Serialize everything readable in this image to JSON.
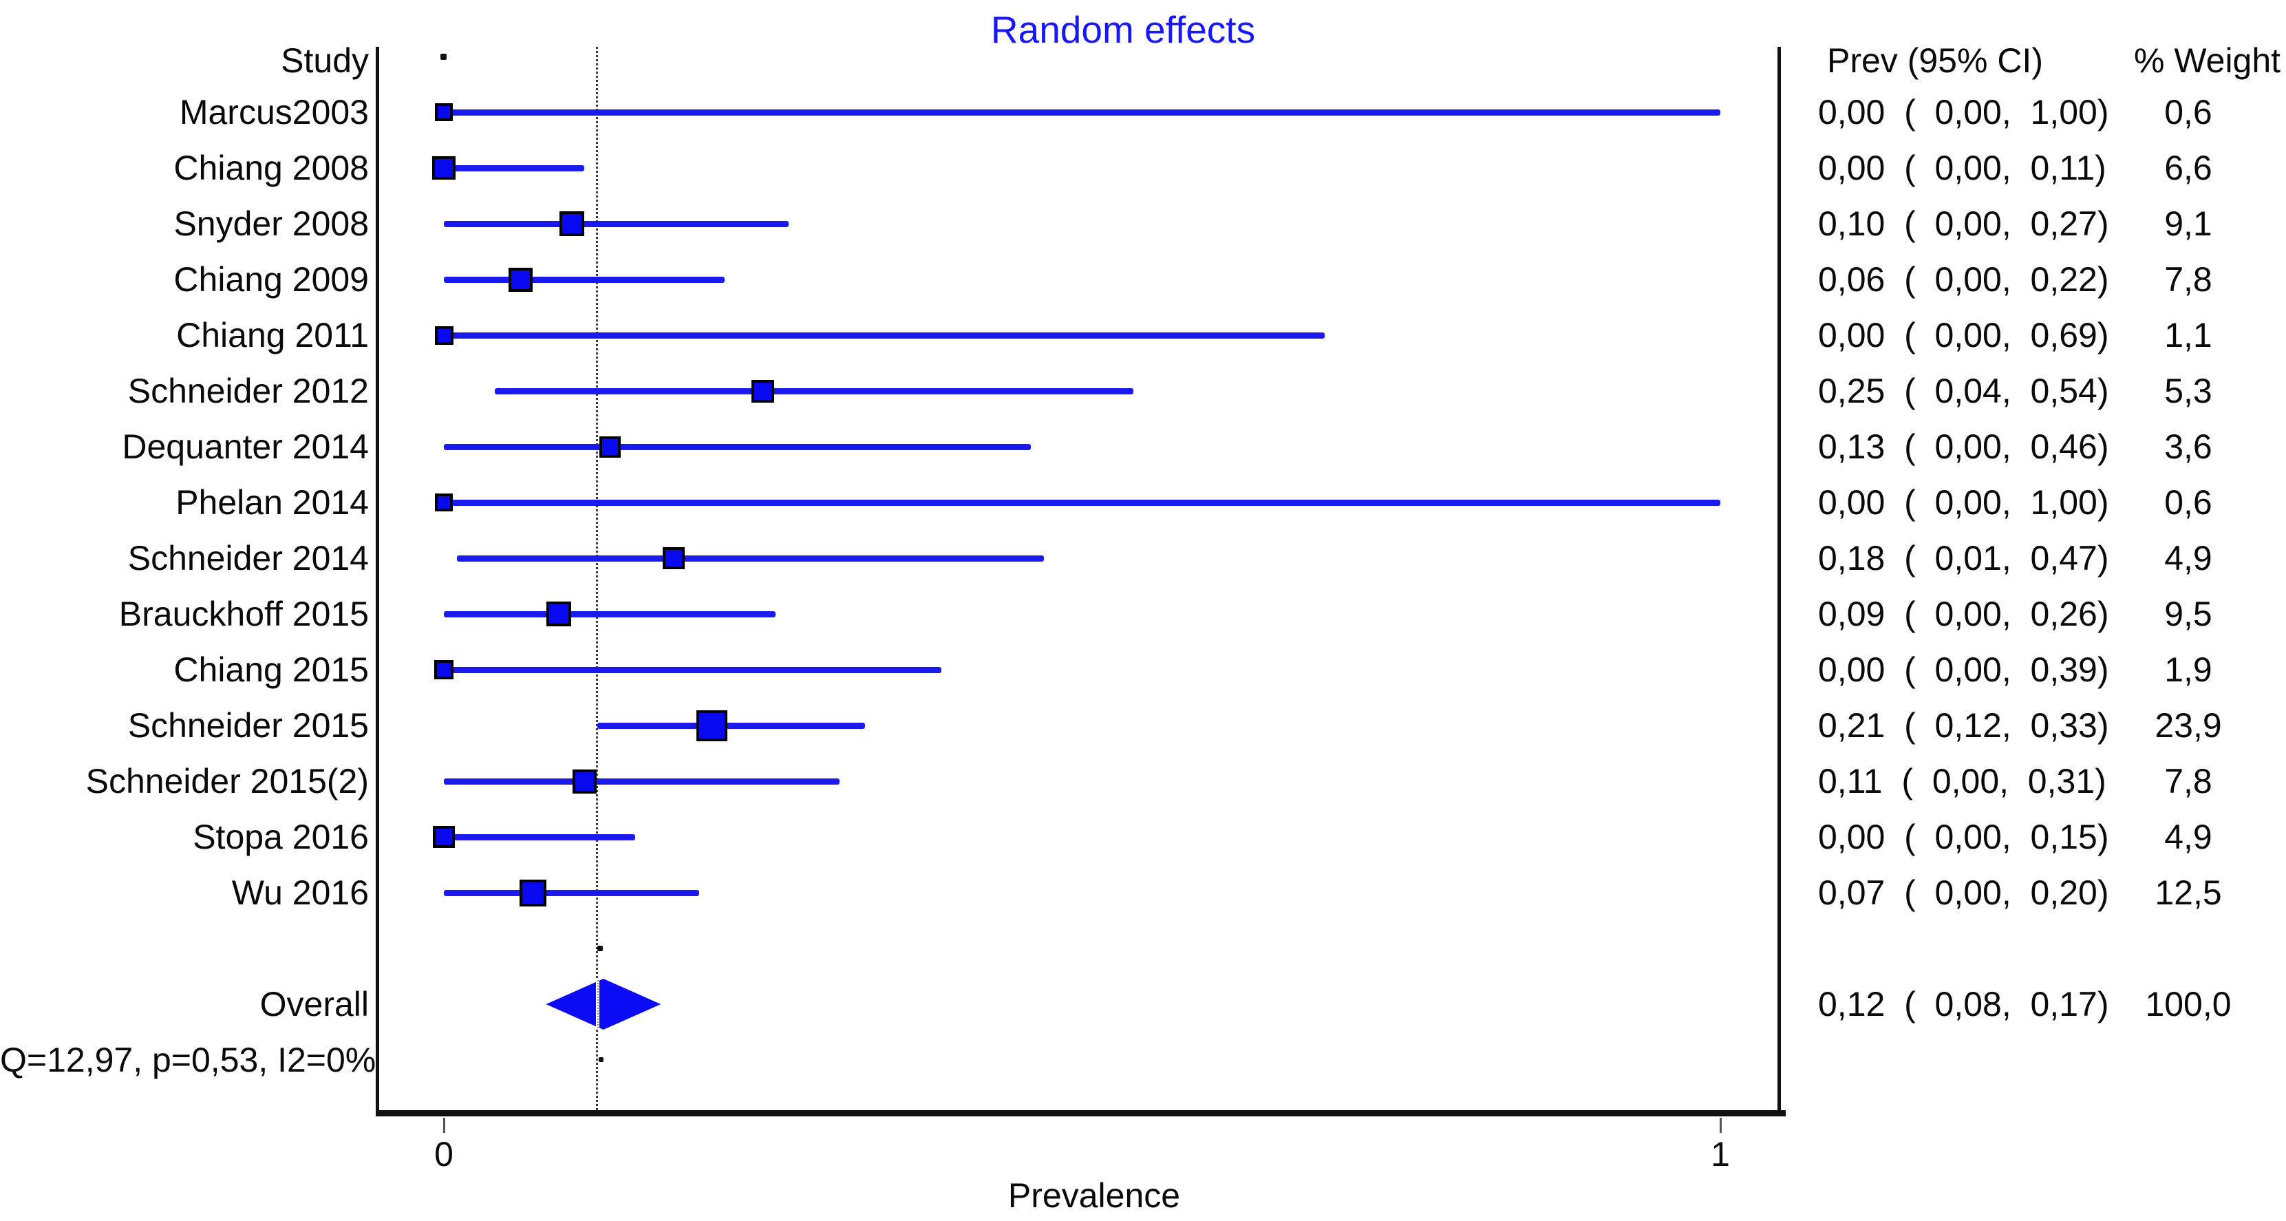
{
  "colors": {
    "ci_line_blue": "#1a1aee",
    "marker_fill_blue": "#0909f0",
    "diamond_blue": "#0b0bf5",
    "title_blue": "#1717ff",
    "axis_black": "#111111"
  },
  "chart_data": {
    "type": "forest",
    "title": "Random effects",
    "xlabel": "Prevalence",
    "xlim": [
      0,
      1
    ],
    "x_ticks": [
      0,
      1
    ],
    "x_tick_labels": [
      "0",
      "1"
    ],
    "dashed_line_x": 0.12,
    "grid": false,
    "columns": {
      "study": "Study",
      "ci": "Prev (95% CI)",
      "weight": "% Weight"
    },
    "studies": [
      {
        "label": "Marcus2003",
        "prev": 0.0,
        "lo": 0.0,
        "hi": 1.0,
        "weight": 0.6,
        "ci_text": "0,00  (  0,00,  1,00)",
        "weight_text": "0,6"
      },
      {
        "label": "Chiang 2008",
        "prev": 0.0,
        "lo": 0.0,
        "hi": 0.11,
        "weight": 6.6,
        "ci_text": "0,00  (  0,00,  0,11)",
        "weight_text": "6,6"
      },
      {
        "label": "Snyder 2008",
        "prev": 0.1,
        "lo": 0.0,
        "hi": 0.27,
        "weight": 9.1,
        "ci_text": "0,10  (  0,00,  0,27)",
        "weight_text": "9,1"
      },
      {
        "label": "Chiang 2009",
        "prev": 0.06,
        "lo": 0.0,
        "hi": 0.22,
        "weight": 7.8,
        "ci_text": "0,06  (  0,00,  0,22)",
        "weight_text": "7,8"
      },
      {
        "label": "Chiang 2011",
        "prev": 0.0,
        "lo": 0.0,
        "hi": 0.69,
        "weight": 1.1,
        "ci_text": "0,00  (  0,00,  0,69)",
        "weight_text": "1,1"
      },
      {
        "label": "Schneider 2012",
        "prev": 0.25,
        "lo": 0.04,
        "hi": 0.54,
        "weight": 5.3,
        "ci_text": "0,25  (  0,04,  0,54)",
        "weight_text": "5,3"
      },
      {
        "label": "Dequanter 2014",
        "prev": 0.13,
        "lo": 0.0,
        "hi": 0.46,
        "weight": 3.6,
        "ci_text": "0,13  (  0,00,  0,46)",
        "weight_text": "3,6"
      },
      {
        "label": "Phelan 2014",
        "prev": 0.0,
        "lo": 0.0,
        "hi": 1.0,
        "weight": 0.6,
        "ci_text": "0,00  (  0,00,  1,00)",
        "weight_text": "0,6"
      },
      {
        "label": "Schneider 2014",
        "prev": 0.18,
        "lo": 0.01,
        "hi": 0.47,
        "weight": 4.9,
        "ci_text": "0,18  (  0,01,  0,47)",
        "weight_text": "4,9"
      },
      {
        "label": "Brauckhoff 2015",
        "prev": 0.09,
        "lo": 0.0,
        "hi": 0.26,
        "weight": 9.5,
        "ci_text": "0,09  (  0,00,  0,26)",
        "weight_text": "9,5"
      },
      {
        "label": "Chiang 2015",
        "prev": 0.0,
        "lo": 0.0,
        "hi": 0.39,
        "weight": 1.9,
        "ci_text": "0,00  (  0,00,  0,39)",
        "weight_text": "1,9"
      },
      {
        "label": "Schneider 2015",
        "prev": 0.21,
        "lo": 0.12,
        "hi": 0.33,
        "weight": 23.9,
        "ci_text": "0,21  (  0,12,  0,33)",
        "weight_text": "23,9"
      },
      {
        "label": "Schneider 2015(2)",
        "prev": 0.11,
        "lo": 0.0,
        "hi": 0.31,
        "weight": 7.8,
        "ci_text": "0,11  (  0,00,  0,31)",
        "weight_text": "7,8"
      },
      {
        "label": "Stopa 2016",
        "prev": 0.0,
        "lo": 0.0,
        "hi": 0.15,
        "weight": 4.9,
        "ci_text": "0,00  (  0,00,  0,15)",
        "weight_text": "4,9"
      },
      {
        "label": "Wu 2016",
        "prev": 0.07,
        "lo": 0.0,
        "hi": 0.2,
        "weight": 12.5,
        "ci_text": "0,07  (  0,00,  0,20)",
        "weight_text": "12,5"
      }
    ],
    "overall": {
      "label": "Overall",
      "prev": 0.12,
      "lo": 0.08,
      "hi": 0.17,
      "weight": 100.0,
      "ci_text": "0,12  (  0,08,  0,17)",
      "weight_text": "100,0"
    },
    "heterogeneity_text": "Q=12,97, p=0,53, I2=0%"
  }
}
